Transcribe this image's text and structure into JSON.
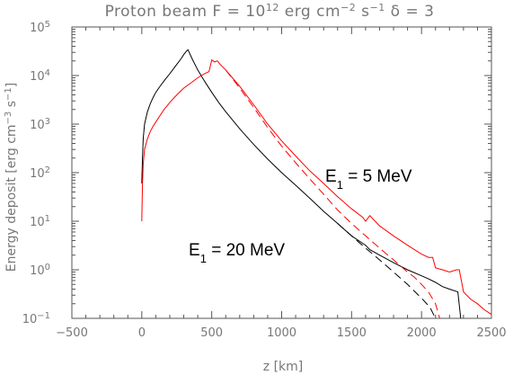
{
  "chart_data": {
    "type": "line",
    "title": {
      "prefix": "Proton beam F = 10",
      "exp": "12",
      "mid": " erg cm",
      "exp2": "−2",
      "mid2": " s",
      "exp3": "−1",
      "suffix": " δ = 3"
    },
    "xlabel": "z [km]",
    "ylabel": {
      "prefix": "Energy deposit [erg cm",
      "exp": "−3",
      "mid": " s",
      "exp2": "−1",
      "suffix": "]"
    },
    "xlim": [
      -500,
      2500
    ],
    "ylim": [
      0.1,
      100000
    ],
    "yscale": "log",
    "x_ticks": [
      "−500",
      "0",
      "500",
      "1000",
      "1500",
      "2000",
      "2500"
    ],
    "y_ticks": [
      {
        "base": "10",
        "exp": "−1"
      },
      {
        "base": "10",
        "exp": "0"
      },
      {
        "base": "10",
        "exp": "1"
      },
      {
        "base": "10",
        "exp": "2"
      },
      {
        "base": "10",
        "exp": "3"
      },
      {
        "base": "10",
        "exp": "4"
      },
      {
        "base": "10",
        "exp": "5"
      }
    ],
    "annotations": [
      {
        "text_base": "E",
        "text_sub": "1",
        "text_rest": " = 5 MeV"
      },
      {
        "text_base": "E",
        "text_sub": "1",
        "text_rest": " = 20 MeV"
      }
    ],
    "series": [
      {
        "color": "#000000",
        "style": "solid",
        "points": [
          [
            0,
            60
          ],
          [
            5,
            200
          ],
          [
            10,
            500
          ],
          [
            20,
            1000
          ],
          [
            40,
            1800
          ],
          [
            60,
            2600
          ],
          [
            80,
            3500
          ],
          [
            100,
            4500
          ],
          [
            130,
            6000
          ],
          [
            160,
            7800
          ],
          [
            190,
            10000
          ],
          [
            220,
            13000
          ],
          [
            250,
            17000
          ],
          [
            280,
            22000
          ],
          [
            300,
            27000
          ],
          [
            320,
            32000
          ],
          [
            330,
            34000
          ],
          [
            360,
            22000
          ],
          [
            400,
            13000
          ],
          [
            450,
            7500
          ],
          [
            500,
            4500
          ],
          [
            550,
            2800
          ],
          [
            600,
            1800
          ],
          [
            700,
            800
          ],
          [
            800,
            380
          ],
          [
            900,
            190
          ],
          [
            1000,
            100
          ],
          [
            1100,
            55
          ],
          [
            1200,
            30
          ],
          [
            1300,
            16
          ],
          [
            1400,
            9
          ],
          [
            1500,
            5
          ],
          [
            1550,
            4
          ],
          [
            1600,
            3.2
          ],
          [
            1630,
            2.6
          ],
          [
            1700,
            2
          ],
          [
            1800,
            1.4
          ],
          [
            1900,
            1.0
          ],
          [
            2000,
            0.75
          ],
          [
            2050,
            0.65
          ],
          [
            2100,
            0.55
          ],
          [
            2150,
            0.45
          ],
          [
            2200,
            0.4
          ],
          [
            2260,
            0.35
          ],
          [
            2280,
            0.1
          ]
        ]
      },
      {
        "color": "#000000",
        "style": "dashed",
        "points": [
          [
            1400,
            9
          ],
          [
            1500,
            5
          ],
          [
            1600,
            2.8
          ],
          [
            1700,
            1.6
          ],
          [
            1800,
            0.9
          ],
          [
            1900,
            0.5
          ],
          [
            2000,
            0.26
          ],
          [
            2060,
            0.17
          ],
          [
            2100,
            0.1
          ]
        ]
      },
      {
        "color": "#ff0000",
        "style": "solid",
        "points": [
          [
            0,
            10
          ],
          [
            5,
            60
          ],
          [
            10,
            150
          ],
          [
            20,
            300
          ],
          [
            40,
            500
          ],
          [
            60,
            700
          ],
          [
            80,
            900
          ],
          [
            100,
            1100
          ],
          [
            130,
            1500
          ],
          [
            160,
            2000
          ],
          [
            200,
            2800
          ],
          [
            250,
            4000
          ],
          [
            300,
            5500
          ],
          [
            350,
            7000
          ],
          [
            400,
            9000
          ],
          [
            450,
            11000
          ],
          [
            480,
            12000
          ],
          [
            500,
            21000
          ],
          [
            520,
            19000
          ],
          [
            540,
            20000
          ],
          [
            560,
            17000
          ],
          [
            600,
            13000
          ],
          [
            700,
            6000
          ],
          [
            800,
            2500
          ],
          [
            900,
            1000
          ],
          [
            1000,
            450
          ],
          [
            1100,
            220
          ],
          [
            1200,
            110
          ],
          [
            1300,
            60
          ],
          [
            1400,
            32
          ],
          [
            1500,
            18
          ],
          [
            1580,
            12
          ],
          [
            1600,
            10
          ],
          [
            1630,
            13
          ],
          [
            1700,
            8
          ],
          [
            1800,
            5
          ],
          [
            1900,
            3.2
          ],
          [
            2000,
            2.1
          ],
          [
            2050,
            1.8
          ],
          [
            2080,
            1.8
          ],
          [
            2100,
            1.1
          ],
          [
            2150,
            1.0
          ],
          [
            2200,
            0.9
          ],
          [
            2250,
            1.0
          ],
          [
            2270,
            1.0
          ],
          [
            2300,
            0.35
          ],
          [
            2350,
            0.25
          ],
          [
            2400,
            0.2
          ],
          [
            2450,
            0.15
          ],
          [
            2500,
            0.12
          ]
        ]
      },
      {
        "color": "#ff0000",
        "style": "dashed",
        "points": [
          [
            600,
            13000
          ],
          [
            700,
            5500
          ],
          [
            800,
            2200
          ],
          [
            900,
            850
          ],
          [
            1000,
            350
          ],
          [
            1100,
            160
          ],
          [
            1200,
            75
          ],
          [
            1300,
            36
          ],
          [
            1400,
            17
          ],
          [
            1500,
            9
          ],
          [
            1600,
            5
          ],
          [
            1700,
            2.8
          ],
          [
            1800,
            1.6
          ],
          [
            1900,
            0.9
          ],
          [
            1950,
            0.7
          ],
          [
            2000,
            0.5
          ],
          [
            2050,
            0.35
          ],
          [
            2100,
            0.2
          ],
          [
            2130,
            0.1
          ]
        ]
      }
    ]
  }
}
